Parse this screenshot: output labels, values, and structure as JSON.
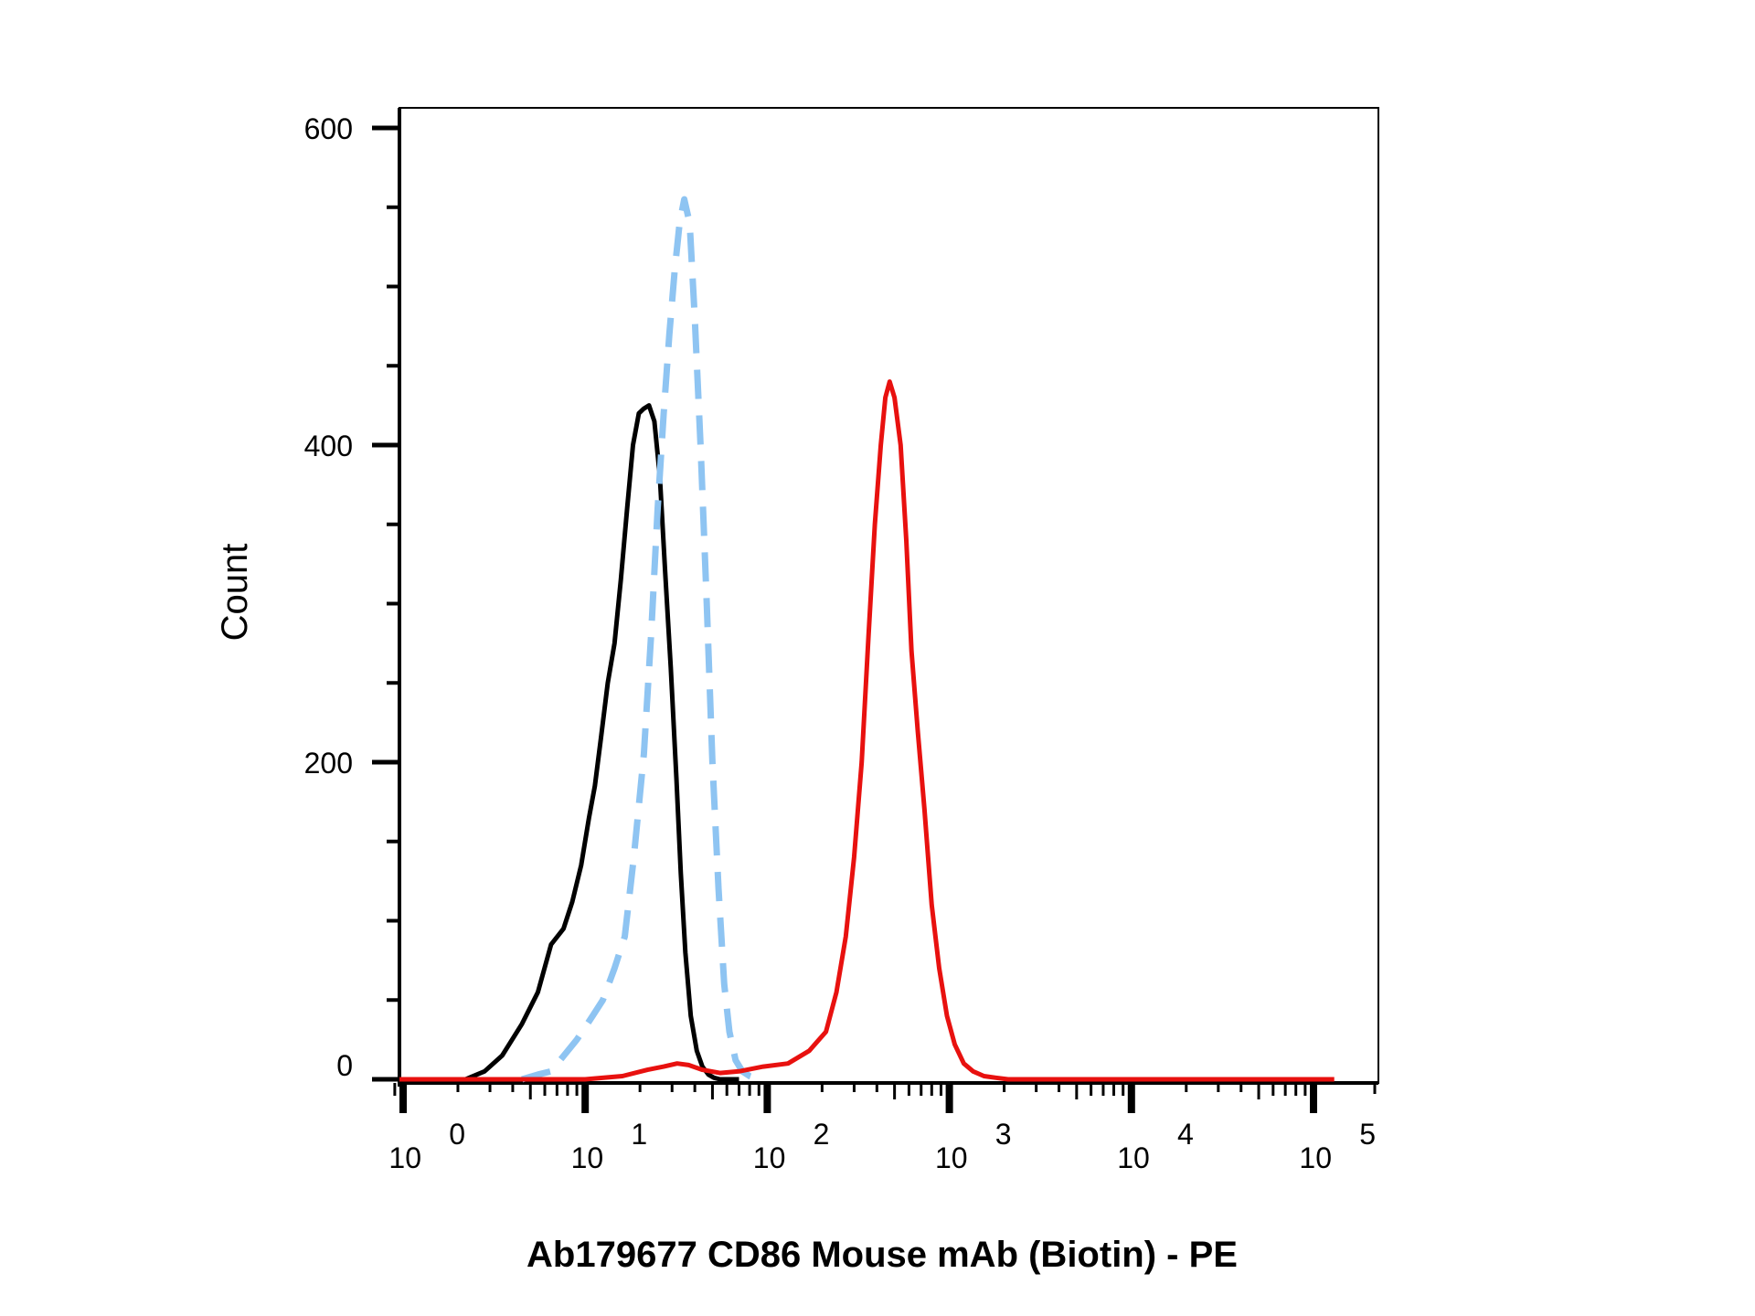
{
  "chart_data": {
    "type": "line",
    "title": "",
    "xlabel": "Ab179677 CD86 Mouse mAb (Biotin) - PE",
    "ylabel": "Count",
    "xscale": "log",
    "xlim": [
      0.8,
      130000
    ],
    "ylim": [
      -10,
      610
    ],
    "y_ticks": [
      0,
      200,
      400,
      600
    ],
    "y_tick_labels": [
      "0",
      "200",
      "400",
      "600"
    ],
    "x_ticks": [
      {
        "base": "10",
        "exp": "0"
      },
      {
        "base": "10",
        "exp": "1"
      },
      {
        "base": "10",
        "exp": "2"
      },
      {
        "base": "10",
        "exp": "3"
      },
      {
        "base": "10",
        "exp": "4"
      },
      {
        "base": "10",
        "exp": "5"
      }
    ],
    "grid": false,
    "legend": false,
    "series": [
      {
        "color": "#000000",
        "style": "solid",
        "x": [
          2.2,
          2.8,
          3.5,
          4.5,
          5.5,
          6.5,
          7.6,
          8.5,
          9.5,
          10.5,
          11.3,
          12.2,
          13.3,
          14.5,
          15.7,
          17.0,
          18.3,
          19.7,
          21.0,
          22.4,
          24.0,
          25.7,
          27.5,
          29.5,
          31.7,
          33.5,
          35.5,
          38.0,
          41.0,
          44.0,
          47.5,
          51.0,
          55.0,
          60.0,
          70.0
        ],
        "y": [
          0,
          5,
          15,
          35,
          55,
          85,
          95,
          112,
          135,
          165,
          185,
          215,
          250,
          275,
          315,
          360,
          400,
          420,
          423,
          425,
          415,
          380,
          320,
          260,
          190,
          130,
          80,
          40,
          18,
          8,
          3,
          1,
          0,
          0,
          0
        ]
      },
      {
        "color": "#8ec4f2",
        "style": "dashed",
        "x": [
          4.5,
          5.5,
          6.5,
          9.0,
          11.0,
          12.5,
          14.5,
          16.5,
          18.5,
          21.0,
          23.0,
          25.0,
          27.0,
          29.0,
          31.0,
          33.0,
          35.0,
          37.5,
          40.0,
          43.0,
          46.5,
          50.0,
          54.0,
          58.0,
          62.0,
          67.0,
          73.0,
          80.0,
          90.0
        ],
        "y": [
          0,
          3,
          5,
          25,
          40,
          50,
          70,
          90,
          140,
          205,
          280,
          360,
          420,
          470,
          510,
          540,
          555,
          540,
          480,
          400,
          300,
          200,
          120,
          60,
          30,
          12,
          5,
          2,
          0
        ]
      },
      {
        "color": "#e8110f",
        "style": "solid",
        "x": [
          0.8,
          5.0,
          10.0,
          16.0,
          22.0,
          27.0,
          32.0,
          37.0,
          44.0,
          55.0,
          70.0,
          95.0,
          130.0,
          170.0,
          210.0,
          240.0,
          270.0,
          300.0,
          330.0,
          360.0,
          390.0,
          420.0,
          445.0,
          470.0,
          500.0,
          540.0,
          580.0,
          620.0,
          670.0,
          730.0,
          800.0,
          880.0,
          970.0,
          1070.0,
          1200.0,
          1350.0,
          1550.0,
          1800.0,
          2100.0,
          2500.0,
          3000.0,
          5000.0,
          20000.0,
          130000.0
        ],
        "y": [
          0,
          0,
          0,
          2,
          6,
          8,
          10,
          9,
          6,
          4,
          5,
          8,
          10,
          18,
          30,
          55,
          90,
          140,
          200,
          280,
          350,
          400,
          430,
          440,
          430,
          400,
          340,
          270,
          220,
          170,
          110,
          70,
          40,
          22,
          10,
          5,
          2,
          1,
          0,
          0,
          0,
          0,
          0,
          0
        ]
      }
    ]
  }
}
